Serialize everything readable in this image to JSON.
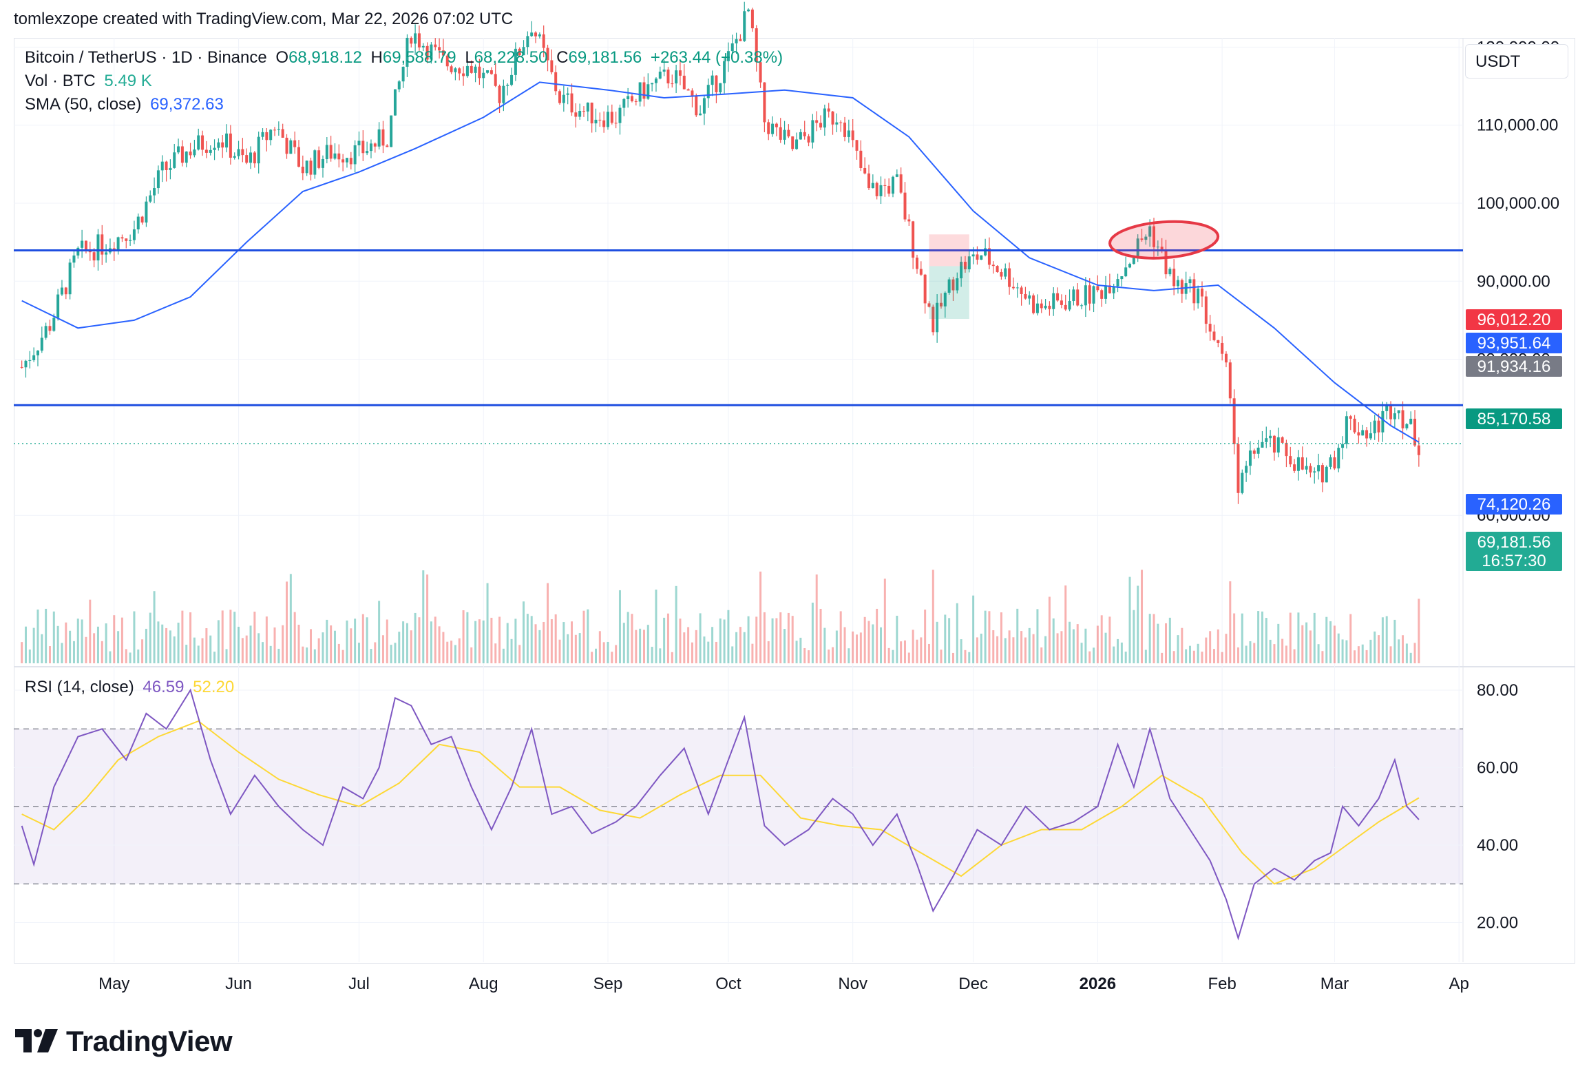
{
  "header": {
    "attribution": "tomlexzope created with TradingView.com, Mar 22, 2026 07:02 UTC"
  },
  "legend": {
    "symbol": "Bitcoin / TetherUS · 1D · Binance",
    "o_label": "O",
    "o_value": "68,918.12",
    "h_label": "H",
    "h_value": "69,588.79",
    "l_label": "L",
    "l_value": "68,228.50",
    "c_label": "C",
    "c_value": "69,181.56",
    "change": "+263.44 (+0.38%)",
    "vol_label": "Vol · BTC",
    "vol_value": "5.49 K",
    "sma_label": "SMA (50, close)",
    "sma_value": "69,372.63",
    "rsi_label": "RSI (14, close)",
    "rsi_value": "46.59",
    "rsi_ma_value": "52.20"
  },
  "currency": "USDT",
  "brand": {
    "name": "TradingView"
  },
  "colors": {
    "up": "#26a69a",
    "down": "#ef5350",
    "sma": "#2962ff",
    "rsi": "#7e57c2",
    "rsi_ma": "#fdd835",
    "hline": "#1e4ee0"
  },
  "chart_data": [
    {
      "type": "candlestick",
      "title": "Bitcoin / TetherUS · 1D · Binance",
      "x_ticks": [
        "May",
        "Jun",
        "Jul",
        "Aug",
        "Sep",
        "Oct",
        "Nov",
        "Dec",
        "2026",
        "Feb",
        "Mar",
        "Ap"
      ],
      "y_ticks": [
        "120,000.00",
        "110,000.00",
        "100,000.00",
        "90,000.00",
        "80,000.00",
        "60,000.00"
      ],
      "y_range": [
        52000,
        128000
      ],
      "grid": true,
      "close_series": [
        [
          "2025-04-08",
          79000
        ],
        [
          "2025-04-15",
          84500
        ],
        [
          "2025-04-22",
          93500
        ],
        [
          "2025-04-29",
          94800
        ],
        [
          "2025-05-06",
          96800
        ],
        [
          "2025-05-13",
          104000
        ],
        [
          "2025-05-20",
          107000
        ],
        [
          "2025-05-27",
          108500
        ],
        [
          "2025-06-03",
          105000
        ],
        [
          "2025-06-10",
          110000
        ],
        [
          "2025-06-17",
          104500
        ],
        [
          "2025-06-24",
          106500
        ],
        [
          "2025-07-01",
          106500
        ],
        [
          "2025-07-08",
          108500
        ],
        [
          "2025-07-14",
          122000
        ],
        [
          "2025-07-22",
          118000
        ],
        [
          "2025-07-29",
          117500
        ],
        [
          "2025-08-05",
          114000
        ],
        [
          "2025-08-13",
          123000
        ],
        [
          "2025-08-20",
          113500
        ],
        [
          "2025-08-27",
          111500
        ],
        [
          "2025-09-03",
          111000
        ],
        [
          "2025-09-10",
          114500
        ],
        [
          "2025-09-17",
          116500
        ],
        [
          "2025-09-24",
          112000
        ],
        [
          "2025-10-01",
          118500
        ],
        [
          "2025-10-06",
          124500
        ],
        [
          "2025-10-10",
          110500
        ],
        [
          "2025-10-17",
          107000
        ],
        [
          "2025-10-24",
          110500
        ],
        [
          "2025-10-29",
          111500
        ],
        [
          "2025-11-05",
          101500
        ],
        [
          "2025-11-12",
          102500
        ],
        [
          "2025-11-17",
          92500
        ],
        [
          "2025-11-21",
          84500
        ],
        [
          "2025-11-27",
          91500
        ],
        [
          "2025-12-03",
          93500
        ],
        [
          "2025-12-10",
          90500
        ],
        [
          "2025-12-17",
          86500
        ],
        [
          "2025-12-24",
          87500
        ],
        [
          "2026-01-01",
          88500
        ],
        [
          "2026-01-07",
          91500
        ],
        [
          "2026-01-14",
          96800
        ],
        [
          "2026-01-20",
          89500
        ],
        [
          "2026-01-26",
          88500
        ],
        [
          "2026-01-29",
          84000
        ],
        [
          "2026-02-03",
          76500
        ],
        [
          "2026-02-05",
          63000
        ],
        [
          "2026-02-10",
          69500
        ],
        [
          "2026-02-17",
          68000
        ],
        [
          "2026-02-24",
          64500
        ],
        [
          "2026-03-01",
          67500
        ],
        [
          "2026-03-04",
          72000
        ],
        [
          "2026-03-10",
          70500
        ],
        [
          "2026-03-16",
          74500
        ],
        [
          "2026-03-22",
          69181.56
        ]
      ],
      "sma50": [
        [
          "2025-04-08",
          87500
        ],
        [
          "2025-04-22",
          84000
        ],
        [
          "2025-05-06",
          85000
        ],
        [
          "2025-05-20",
          88000
        ],
        [
          "2025-06-03",
          95000
        ],
        [
          "2025-06-17",
          101500
        ],
        [
          "2025-07-01",
          104000
        ],
        [
          "2025-07-15",
          107000
        ],
        [
          "2025-08-01",
          111000
        ],
        [
          "2025-08-15",
          115500
        ],
        [
          "2025-09-01",
          114500
        ],
        [
          "2025-09-15",
          113500
        ],
        [
          "2025-10-01",
          114000
        ],
        [
          "2025-10-15",
          114500
        ],
        [
          "2025-11-01",
          113500
        ],
        [
          "2025-11-15",
          108500
        ],
        [
          "2025-12-01",
          99000
        ],
        [
          "2025-12-15",
          93000
        ],
        [
          "2026-01-01",
          89500
        ],
        [
          "2026-01-15",
          88800
        ],
        [
          "2026-01-31",
          89500
        ],
        [
          "2026-02-14",
          84000
        ],
        [
          "2026-03-01",
          77000
        ],
        [
          "2026-03-15",
          71500
        ],
        [
          "2026-03-22",
          69372.63
        ]
      ],
      "horizontal_lines": [
        {
          "price": 93951.64,
          "label": "93,951.64"
        },
        {
          "price": 74120.26,
          "label": "74,120.26"
        }
      ],
      "price_labels": [
        {
          "label": "96,012.20",
          "color": "#f23645"
        },
        {
          "label": "93,951.64",
          "color": "#2962ff"
        },
        {
          "label": "91,934.16",
          "color": "#787b86"
        },
        {
          "label": "85,170.58",
          "color": "#089981"
        },
        {
          "label": "74,120.26",
          "color": "#2962ff"
        },
        {
          "label": "69,181.56",
          "color": "#22ab94"
        },
        {
          "label": "16:57:30",
          "color": "#22ab94"
        }
      ]
    },
    {
      "type": "line",
      "title": "RSI (14, close)",
      "y_ticks": [
        "80.00",
        "60.00",
        "40.00",
        "20.00"
      ],
      "y_range": [
        10,
        85
      ],
      "bands": [
        30,
        50,
        70
      ],
      "rsi": [
        [
          "2025-04-08",
          45
        ],
        [
          "2025-04-11",
          35
        ],
        [
          "2025-04-16",
          55
        ],
        [
          "2025-04-22",
          68
        ],
        [
          "2025-04-28",
          70
        ],
        [
          "2025-05-04",
          62
        ],
        [
          "2025-05-09",
          74
        ],
        [
          "2025-05-14",
          70
        ],
        [
          "2025-05-20",
          80
        ],
        [
          "2025-05-25",
          62
        ],
        [
          "2025-05-30",
          48
        ],
        [
          "2025-06-05",
          58
        ],
        [
          "2025-06-11",
          50
        ],
        [
          "2025-06-17",
          44
        ],
        [
          "2025-06-22",
          40
        ],
        [
          "2025-06-27",
          55
        ],
        [
          "2025-07-02",
          52
        ],
        [
          "2025-07-06",
          60
        ],
        [
          "2025-07-10",
          78
        ],
        [
          "2025-07-14",
          76
        ],
        [
          "2025-07-19",
          66
        ],
        [
          "2025-07-24",
          68
        ],
        [
          "2025-07-29",
          55
        ],
        [
          "2025-08-03",
          44
        ],
        [
          "2025-08-08",
          55
        ],
        [
          "2025-08-13",
          70
        ],
        [
          "2025-08-18",
          48
        ],
        [
          "2025-08-23",
          50
        ],
        [
          "2025-08-28",
          43
        ],
        [
          "2025-09-03",
          46
        ],
        [
          "2025-09-08",
          50
        ],
        [
          "2025-09-14",
          58
        ],
        [
          "2025-09-20",
          65
        ],
        [
          "2025-09-26",
          48
        ],
        [
          "2025-10-01",
          62
        ],
        [
          "2025-10-05",
          73
        ],
        [
          "2025-10-10",
          45
        ],
        [
          "2025-10-15",
          40
        ],
        [
          "2025-10-21",
          44
        ],
        [
          "2025-10-27",
          52
        ],
        [
          "2025-11-01",
          48
        ],
        [
          "2025-11-06",
          40
        ],
        [
          "2025-11-12",
          48
        ],
        [
          "2025-11-17",
          35
        ],
        [
          "2025-11-21",
          23
        ],
        [
          "2025-11-26",
          32
        ],
        [
          "2025-12-02",
          44
        ],
        [
          "2025-12-08",
          40
        ],
        [
          "2025-12-14",
          50
        ],
        [
          "2025-12-20",
          44
        ],
        [
          "2025-12-26",
          46
        ],
        [
          "2026-01-01",
          50
        ],
        [
          "2026-01-06",
          66
        ],
        [
          "2026-01-10",
          55
        ],
        [
          "2026-01-14",
          70
        ],
        [
          "2026-01-19",
          52
        ],
        [
          "2026-01-24",
          44
        ],
        [
          "2026-01-29",
          36
        ],
        [
          "2026-02-02",
          26
        ],
        [
          "2026-02-05",
          16
        ],
        [
          "2026-02-09",
          30
        ],
        [
          "2026-02-14",
          34
        ],
        [
          "2026-02-19",
          31
        ],
        [
          "2026-02-24",
          36
        ],
        [
          "2026-02-28",
          38
        ],
        [
          "2026-03-03",
          50
        ],
        [
          "2026-03-07",
          45
        ],
        [
          "2026-03-12",
          52
        ],
        [
          "2026-03-16",
          62
        ],
        [
          "2026-03-19",
          50
        ],
        [
          "2026-03-22",
          46.59
        ]
      ],
      "rsi_ma": [
        [
          "2025-04-08",
          48
        ],
        [
          "2025-04-16",
          44
        ],
        [
          "2025-04-24",
          52
        ],
        [
          "2025-05-02",
          62
        ],
        [
          "2025-05-12",
          68
        ],
        [
          "2025-05-22",
          72
        ],
        [
          "2025-06-01",
          64
        ],
        [
          "2025-06-11",
          57
        ],
        [
          "2025-06-21",
          53
        ],
        [
          "2025-07-01",
          50
        ],
        [
          "2025-07-11",
          56
        ],
        [
          "2025-07-21",
          66
        ],
        [
          "2025-07-31",
          64
        ],
        [
          "2025-08-10",
          55
        ],
        [
          "2025-08-20",
          55
        ],
        [
          "2025-08-30",
          49
        ],
        [
          "2025-09-09",
          47
        ],
        [
          "2025-09-19",
          53
        ],
        [
          "2025-09-29",
          58
        ],
        [
          "2025-10-09",
          58
        ],
        [
          "2025-10-19",
          47
        ],
        [
          "2025-10-29",
          45
        ],
        [
          "2025-11-08",
          44
        ],
        [
          "2025-11-18",
          38
        ],
        [
          "2025-11-28",
          32
        ],
        [
          "2025-12-08",
          40
        ],
        [
          "2025-12-18",
          44
        ],
        [
          "2025-12-28",
          44
        ],
        [
          "2026-01-07",
          50
        ],
        [
          "2026-01-17",
          58
        ],
        [
          "2026-01-27",
          52
        ],
        [
          "2026-02-06",
          38
        ],
        [
          "2026-02-14",
          30
        ],
        [
          "2026-02-24",
          34
        ],
        [
          "2026-03-04",
          40
        ],
        [
          "2026-03-12",
          46
        ],
        [
          "2026-03-22",
          52.2
        ]
      ]
    }
  ]
}
